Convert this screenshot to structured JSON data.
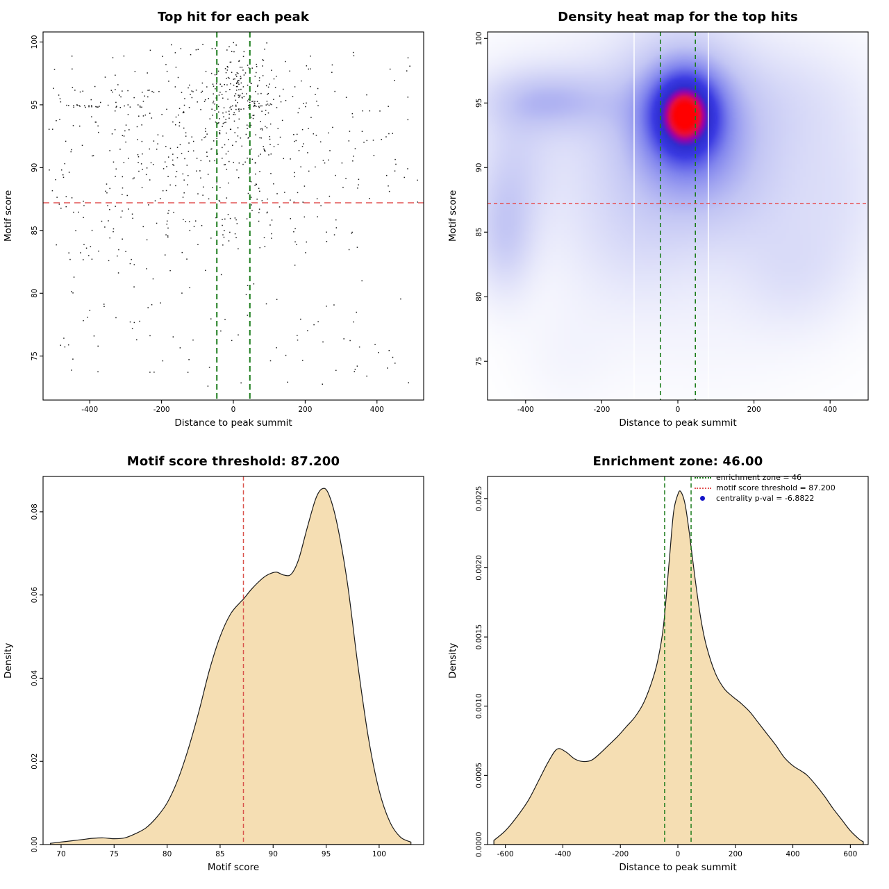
{
  "figure": {
    "background": "#ffffff"
  },
  "chart_data": [
    {
      "type": "scatter",
      "title": "Top hit for each peak",
      "xlabel": "Distance to peak summit",
      "ylabel": "Motif score",
      "xlim": [
        -530,
        530
      ],
      "ylim": [
        71.5,
        100.8
      ],
      "xticks": [
        -400,
        -200,
        0,
        200,
        400
      ],
      "xtick_labels": [
        "-400",
        "-200",
        "0",
        "200",
        "400"
      ],
      "yticks": [
        75,
        80,
        85,
        90,
        95,
        100
      ],
      "ytick_labels": [
        "75",
        "80",
        "85",
        "90",
        "95",
        "100"
      ],
      "point_color": "#000000",
      "seed": 42,
      "clusters": [
        {
          "kind": "gauss",
          "n": 400,
          "mx": -10,
          "my": 91.3,
          "sx": 235,
          "sy": 4.6
        },
        {
          "kind": "gauss",
          "n": 185,
          "mx": 18,
          "my": 95.6,
          "sx": 52,
          "sy": 2.1
        },
        {
          "kind": "uniform",
          "n": 150,
          "x0": -505,
          "x1": 505,
          "y0": 72.5,
          "y1": 99.5
        },
        {
          "kind": "uniform",
          "n": 80,
          "x0": -505,
          "x1": -80,
          "y0": 81,
          "y1": 96.5
        },
        {
          "kind": "row",
          "n": 26,
          "x0": -490,
          "x1": -255,
          "y": 94.9,
          "jitter": 0.12
        },
        {
          "kind": "row",
          "n": 13,
          "x0": -455,
          "x1": -110,
          "y": 96.1,
          "jitter": 0.12
        },
        {
          "kind": "uniform",
          "n": 30,
          "x0": -480,
          "x1": 480,
          "y0": 73,
          "y1": 80
        }
      ],
      "vlines": [
        {
          "x": -46,
          "color": "#1d7d1d",
          "width": 2,
          "dash": [
            8,
            5
          ]
        },
        {
          "x": 46,
          "color": "#1d7d1d",
          "width": 2,
          "dash": [
            8,
            5
          ]
        }
      ],
      "hlines": [
        {
          "y": 87.2,
          "color": "#e25353",
          "width": 1.6,
          "dash": [
            9,
            6
          ]
        }
      ]
    },
    {
      "type": "heatmap",
      "title": "Density heat map for the top hits",
      "xlabel": "Distance to peak summit",
      "ylabel": "Motif score",
      "xlim": [
        -500,
        500
      ],
      "ylim": [
        72,
        100.5
      ],
      "xticks": [
        -400,
        -200,
        0,
        200,
        400
      ],
      "xtick_labels": [
        "-400",
        "-200",
        "0",
        "200",
        "400"
      ],
      "yticks": [
        75,
        80,
        85,
        90,
        95,
        100
      ],
      "ytick_labels": [
        "75",
        "80",
        "85",
        "90",
        "95",
        "100"
      ],
      "colormap": [
        [
          0,
          "#ffffff"
        ],
        [
          0.3,
          "#c3c6f4"
        ],
        [
          0.5,
          "#8286ee"
        ],
        [
          0.68,
          "#3a3ae2"
        ],
        [
          0.8,
          "#2d2dcf"
        ],
        [
          0.88,
          "#9e00a8"
        ],
        [
          0.94,
          "#e80f3c"
        ],
        [
          1,
          "#ff0000"
        ]
      ],
      "density_norm": 1.85,
      "blobs": [
        {
          "x": 18,
          "y": 94.2,
          "sx": 60,
          "sy": 2.2,
          "a": 1.0
        },
        {
          "x": 15,
          "y": 93.8,
          "sx": 105,
          "sy": 4.2,
          "a": 0.6
        },
        {
          "x": -20,
          "y": 92.5,
          "sx": 250,
          "sy": 5.5,
          "a": 0.3
        },
        {
          "x": -340,
          "y": 95.2,
          "sx": 120,
          "sy": 1.7,
          "a": 0.4
        },
        {
          "x": -455,
          "y": 84.8,
          "sx": 55,
          "sy": 3.2,
          "a": 0.35
        },
        {
          "x": -430,
          "y": 90.5,
          "sx": 70,
          "sy": 3.5,
          "a": 0.2
        },
        {
          "x": -120,
          "y": 84.5,
          "sx": 130,
          "sy": 3.8,
          "a": 0.16
        },
        {
          "x": 160,
          "y": 88.5,
          "sx": 130,
          "sy": 4.0,
          "a": 0.18
        },
        {
          "x": 300,
          "y": 81.8,
          "sx": 100,
          "sy": 3.0,
          "a": 0.16
        },
        {
          "x": 430,
          "y": 87.5,
          "sx": 90,
          "sy": 4.5,
          "a": 0.14
        },
        {
          "x": 300,
          "y": 95.5,
          "sx": 150,
          "sy": 3.0,
          "a": 0.12
        },
        {
          "x": 80,
          "y": 77.5,
          "sx": 220,
          "sy": 4.0,
          "a": 0.05
        },
        {
          "x": -290,
          "y": 75.5,
          "sx": 90,
          "sy": 3.0,
          "a": 0.05
        }
      ],
      "white_lines": [
        -115,
        80
      ],
      "vlines": [
        {
          "x": -46,
          "color": "#1d7d1d",
          "width": 1.6,
          "dash": [
            6,
            5
          ]
        },
        {
          "x": 46,
          "color": "#1d7d1d",
          "width": 1.6,
          "dash": [
            6,
            5
          ]
        }
      ],
      "hlines": [
        {
          "y": 87.2,
          "color": "#e84444",
          "width": 1.3,
          "dash": [
            5,
            4
          ]
        }
      ]
    },
    {
      "type": "density",
      "title": "Motif score threshold: 87.200",
      "xlabel": "Motif score",
      "ylabel": "Density",
      "xlim": [
        68.3,
        104.2
      ],
      "ylim": [
        0,
        0.0885
      ],
      "xticks": [
        70,
        75,
        80,
        85,
        90,
        95,
        100
      ],
      "xtick_labels": [
        "70",
        "75",
        "80",
        "85",
        "90",
        "95",
        "100"
      ],
      "yticks": [
        0,
        0.02,
        0.04,
        0.06,
        0.08
      ],
      "ytick_labels": [
        "0.00",
        "0.02",
        "0.04",
        "0.06",
        "0.08"
      ],
      "fill": "#f5deb3",
      "stroke": "#1a1a1a",
      "curve": [
        [
          69,
          0.0003
        ],
        [
          70,
          0.0006
        ],
        [
          71,
          0.0009
        ],
        [
          72,
          0.0012
        ],
        [
          73,
          0.0015
        ],
        [
          74,
          0.0016
        ],
        [
          75,
          0.0014
        ],
        [
          76,
          0.0016
        ],
        [
          77,
          0.0026
        ],
        [
          78,
          0.004
        ],
        [
          79,
          0.0065
        ],
        [
          80,
          0.01
        ],
        [
          81,
          0.0155
        ],
        [
          82,
          0.023
        ],
        [
          83,
          0.032
        ],
        [
          84,
          0.042
        ],
        [
          85,
          0.05
        ],
        [
          86,
          0.0555
        ],
        [
          87,
          0.0585
        ],
        [
          87.2,
          0.059
        ],
        [
          88,
          0.0615
        ],
        [
          89,
          0.064
        ],
        [
          89.6,
          0.065
        ],
        [
          90.3,
          0.0655
        ],
        [
          91,
          0.0648
        ],
        [
          91.7,
          0.065
        ],
        [
          92.4,
          0.0685
        ],
        [
          93.2,
          0.076
        ],
        [
          94,
          0.083
        ],
        [
          94.6,
          0.0855
        ],
        [
          95.2,
          0.0845
        ],
        [
          96,
          0.0775
        ],
        [
          97,
          0.063
        ],
        [
          98,
          0.043
        ],
        [
          99,
          0.0255
        ],
        [
          100,
          0.013
        ],
        [
          101,
          0.0055
        ],
        [
          102,
          0.0018
        ],
        [
          103,
          0.0006
        ]
      ],
      "vlines": [
        {
          "x": 87.2,
          "color": "#d9544d",
          "width": 1.5,
          "dash": [
            6,
            4
          ]
        }
      ]
    },
    {
      "type": "density",
      "title": "Enrichment zone: 46.00",
      "xlabel": "Distance to peak summit",
      "ylabel": "Density",
      "xlim": [
        -662,
        662
      ],
      "ylim": [
        0,
        0.00266
      ],
      "xticks": [
        -600,
        -400,
        -200,
        0,
        200,
        400,
        600
      ],
      "xtick_labels": [
        "-600",
        "-400",
        "-200",
        "0",
        "200",
        "400",
        "600"
      ],
      "yticks": [
        0,
        0.0005,
        0.001,
        0.0015,
        0.002,
        0.0025
      ],
      "ytick_labels": [
        "0.0000",
        "0.0005",
        "0.0010",
        "0.0015",
        "0.0020",
        "0.0025"
      ],
      "fill": "#f5deb3",
      "stroke": "#1a1a1a",
      "curve": [
        [
          -640,
          3e-05
        ],
        [
          -600,
          0.0001
        ],
        [
          -560,
          0.0002
        ],
        [
          -520,
          0.00032
        ],
        [
          -480,
          0.00048
        ],
        [
          -450,
          0.0006
        ],
        [
          -420,
          0.00069
        ],
        [
          -390,
          0.00067
        ],
        [
          -360,
          0.00062
        ],
        [
          -330,
          0.0006
        ],
        [
          -300,
          0.00061
        ],
        [
          -270,
          0.00066
        ],
        [
          -240,
          0.00072
        ],
        [
          -210,
          0.00078
        ],
        [
          -180,
          0.00085
        ],
        [
          -150,
          0.00092
        ],
        [
          -120,
          0.00102
        ],
        [
          -90,
          0.00118
        ],
        [
          -70,
          0.00133
        ],
        [
          -50,
          0.00158
        ],
        [
          -30,
          0.00205
        ],
        [
          -15,
          0.0024
        ],
        [
          0,
          0.00253
        ],
        [
          10,
          0.00255
        ],
        [
          25,
          0.00246
        ],
        [
          40,
          0.00225
        ],
        [
          60,
          0.00192
        ],
        [
          80,
          0.00163
        ],
        [
          100,
          0.00143
        ],
        [
          130,
          0.00124
        ],
        [
          160,
          0.00113
        ],
        [
          190,
          0.00107
        ],
        [
          220,
          0.00102
        ],
        [
          250,
          0.00096
        ],
        [
          280,
          0.00088
        ],
        [
          310,
          0.0008
        ],
        [
          340,
          0.00072
        ],
        [
          370,
          0.00063
        ],
        [
          400,
          0.00057
        ],
        [
          430,
          0.00053
        ],
        [
          450,
          0.0005
        ],
        [
          480,
          0.00043
        ],
        [
          510,
          0.00035
        ],
        [
          540,
          0.00026
        ],
        [
          570,
          0.00018
        ],
        [
          600,
          0.0001
        ],
        [
          630,
          4e-05
        ],
        [
          645,
          2e-05
        ]
      ],
      "vlines": [
        {
          "x": -46,
          "color": "#1d7d1d",
          "width": 1.5,
          "dash": [
            6,
            4
          ]
        },
        {
          "x": 46,
          "color": "#1d7d1d",
          "width": 1.5,
          "dash": [
            6,
            4
          ]
        }
      ],
      "legend": [
        {
          "type": "line",
          "color": "#1d7d1d",
          "label": "enrichment zone = 46"
        },
        {
          "type": "line",
          "color": "#e25353",
          "label": "motif score threshold = 87.200"
        },
        {
          "type": "point",
          "color": "#1414c8",
          "label": "centrality p-val = -6.8822"
        }
      ]
    }
  ]
}
